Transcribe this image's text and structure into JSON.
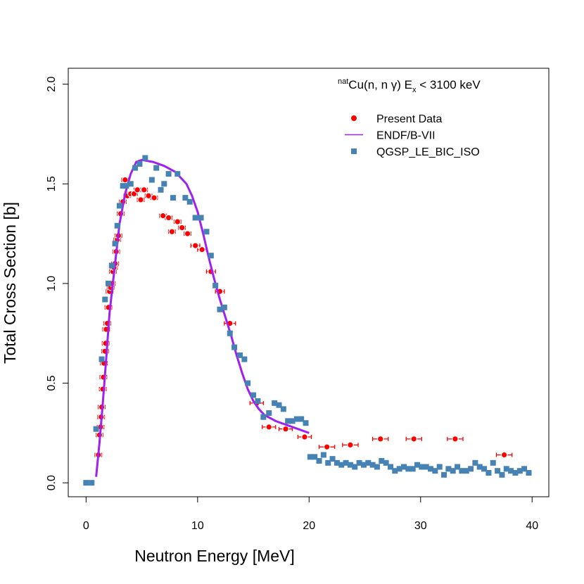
{
  "chart_data": {
    "type": "scatter",
    "annotation": {
      "parts": [
        "nat",
        "Cu(n, n γ) E",
        "x",
        " < 3100 keV"
      ]
    },
    "xlabel": "Neutron Energy [MeV]",
    "ylabel": "Total Cross Section [b]",
    "xlim": [
      -1.6,
      41.5
    ],
    "ylim": [
      -0.07,
      2.08
    ],
    "xticks": [
      0,
      10,
      20,
      30,
      40
    ],
    "yticks": [
      {
        "value": 0,
        "label": "0.0"
      },
      {
        "value": 0.5,
        "label": "0.5"
      },
      {
        "value": 1,
        "label": "1.0"
      },
      {
        "value": 1.5,
        "label": "1.5"
      },
      {
        "value": 2,
        "label": "2.0"
      }
    ],
    "legend": "top-right",
    "series": [
      {
        "name": "Present Data",
        "color": "#ff0000",
        "marker": "circle",
        "x": [
          1.1,
          1.2,
          1.3,
          1.35,
          1.4,
          1.5,
          1.55,
          1.6,
          1.7,
          1.75,
          1.8,
          1.9,
          2.0,
          2.1,
          2.2,
          2.3,
          2.4,
          2.5,
          2.6,
          2.7,
          2.8,
          2.9,
          3.1,
          3.3,
          3.5,
          3.7,
          4.0,
          4.3,
          4.6,
          4.9,
          5.2,
          5.6,
          6.1,
          6.9,
          7.4,
          7.7,
          8.2,
          8.6,
          9.1,
          9.8,
          10.4,
          11.2,
          12.0,
          12.9,
          15.3,
          16.4,
          17.9,
          19.6,
          21.6,
          23.7,
          26.4,
          29.4,
          33.1,
          37.5
        ],
        "xerr": [
          0.3,
          0.3,
          0.3,
          0.3,
          0.3,
          0.3,
          0.3,
          0.3,
          0.3,
          0.3,
          0.3,
          0.3,
          0.3,
          0.3,
          0.3,
          0.3,
          0.3,
          0.3,
          0.3,
          0.3,
          0.3,
          0.3,
          0.3,
          0.3,
          0.3,
          0.3,
          0.3,
          0.3,
          0.3,
          0.3,
          0.3,
          0.3,
          0.3,
          0.3,
          0.3,
          0.3,
          0.3,
          0.3,
          0.3,
          0.4,
          0.4,
          0.4,
          0.4,
          0.5,
          0.6,
          0.6,
          0.6,
          0.6,
          0.7,
          0.7,
          0.7,
          0.7,
          0.7,
          0.7
        ],
        "values": [
          0.14,
          0.24,
          0.28,
          0.33,
          0.38,
          0.47,
          0.53,
          0.6,
          0.66,
          0.7,
          0.77,
          0.8,
          0.88,
          0.96,
          0.98,
          1.0,
          1.06,
          1.08,
          1.1,
          1.16,
          1.22,
          1.24,
          1.35,
          1.41,
          1.52,
          1.44,
          1.45,
          1.45,
          1.47,
          1.42,
          1.47,
          1.44,
          1.43,
          1.34,
          1.33,
          1.26,
          1.31,
          1.28,
          1.25,
          1.19,
          1.17,
          1.06,
          0.96,
          0.8,
          0.4,
          0.28,
          0.27,
          0.23,
          0.18,
          0.19,
          0.22,
          0.22,
          0.22,
          0.14
        ]
      },
      {
        "name": "ENDF/B-VII",
        "color": "#a020f0",
        "marker": "line",
        "x": [
          0.9,
          1.2,
          1.5,
          1.8,
          2.1,
          2.5,
          3.0,
          3.5,
          4.0,
          4.5,
          5.0,
          6.0,
          7.0,
          8.0,
          9.0,
          9.5,
          10.0,
          10.5,
          11.0,
          11.5,
          12.0,
          12.5,
          13.0,
          13.5,
          14.0,
          14.5,
          15.0,
          15.5,
          16.0,
          17.0,
          18.0,
          19.0,
          20.0
        ],
        "values": [
          0.03,
          0.2,
          0.4,
          0.62,
          0.85,
          1.05,
          1.3,
          1.45,
          1.55,
          1.61,
          1.62,
          1.61,
          1.59,
          1.56,
          1.5,
          1.44,
          1.36,
          1.25,
          1.13,
          1.02,
          0.92,
          0.83,
          0.74,
          0.64,
          0.55,
          0.47,
          0.41,
          0.37,
          0.34,
          0.31,
          0.29,
          0.27,
          0.25
        ]
      },
      {
        "name": "QGSP_LE_BIC_ISO",
        "color": "#4682b4",
        "marker": "square",
        "x": [
          0,
          0.5,
          0.9,
          1.4,
          1.7,
          2.0,
          2.3,
          2.6,
          2.8,
          3.0,
          3.3,
          3.6,
          4.0,
          4.4,
          4.8,
          5.3,
          5.9,
          6.3,
          6.7,
          7.0,
          7.4,
          7.8,
          8.2,
          8.9,
          9.3,
          9.8,
          10.3,
          10.8,
          11.2,
          11.6,
          12.0,
          12.4,
          12.9,
          13.3,
          13.8,
          14.2,
          14.5,
          15.0,
          15.4,
          15.9,
          16.4,
          16.9,
          17.3,
          17.7,
          18.1,
          18.5,
          18.9,
          19.3,
          19.7,
          20.1,
          20.5,
          20.9,
          21.3,
          21.7,
          22.1,
          22.5,
          22.9,
          23.3,
          23.7,
          24.1,
          24.5,
          24.9,
          25.3,
          25.7,
          26.1,
          26.5,
          26.9,
          27.3,
          27.7,
          28.1,
          28.5,
          28.9,
          29.3,
          29.7,
          30.1,
          30.5,
          30.9,
          31.3,
          31.7,
          32.1,
          32.5,
          32.9,
          33.3,
          33.7,
          34.1,
          34.5,
          34.9,
          35.3,
          35.7,
          36.1,
          36.5,
          36.9,
          37.3,
          37.7,
          38.1,
          38.5,
          38.9,
          39.3,
          39.7
        ],
        "values": [
          0,
          0,
          0.27,
          0.62,
          0.92,
          1.0,
          1.09,
          1.2,
          1.29,
          1.39,
          1.49,
          1.49,
          1.5,
          1.58,
          1.6,
          1.63,
          1.52,
          1.58,
          1.47,
          1.5,
          1.55,
          1.43,
          1.55,
          1.43,
          1.41,
          1.33,
          1.33,
          1.26,
          1.14,
          0.99,
          0.87,
          0.88,
          0.75,
          0.68,
          0.64,
          0.62,
          0.5,
          0.44,
          0.41,
          0.33,
          0.35,
          0.4,
          0.39,
          0.37,
          0.31,
          0.31,
          0.32,
          0.32,
          0.3,
          0.13,
          0.13,
          0.11,
          0.14,
          0.1,
          0.12,
          0.1,
          0.09,
          0.1,
          0.09,
          0.08,
          0.1,
          0.09,
          0.1,
          0.09,
          0.08,
          0.11,
          0.1,
          0.08,
          0.06,
          0.07,
          0.08,
          0.07,
          0.07,
          0.09,
          0.08,
          0.08,
          0.07,
          0.06,
          0.08,
          0.04,
          0.07,
          0.06,
          0.08,
          0.06,
          0.06,
          0.07,
          0.1,
          0.08,
          0.07,
          0.05,
          0.1,
          0.06,
          0.04,
          0.07,
          0.06,
          0.05,
          0.06,
          0.07,
          0.05
        ]
      }
    ]
  }
}
